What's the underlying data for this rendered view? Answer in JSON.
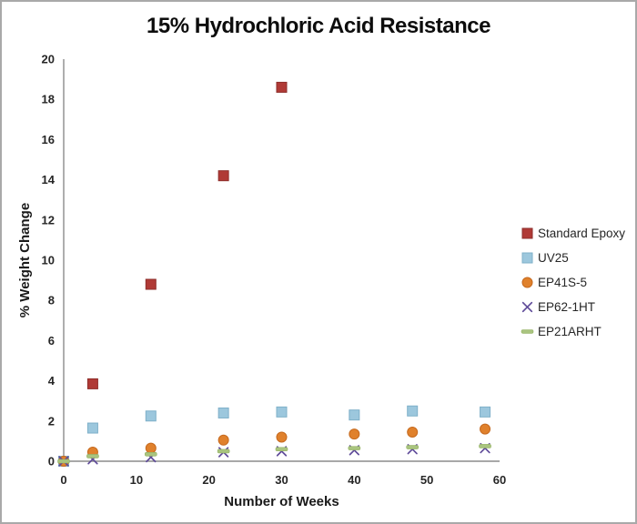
{
  "frame": {
    "background": "#ffffff",
    "border_color": "#a9a9a9"
  },
  "chart_data": {
    "type": "scatter",
    "title": "15% Hydrochloric Acid Resistance",
    "xlabel": "Number of Weeks",
    "ylabel": "% Weight Change",
    "xlim": [
      0,
      60
    ],
    "ylim": [
      0,
      20
    ],
    "x_ticks": [
      0,
      10,
      20,
      30,
      40,
      50,
      60
    ],
    "y_ticks": [
      0,
      2,
      4,
      6,
      8,
      10,
      12,
      14,
      16,
      18,
      20
    ],
    "grid": false,
    "legend_position": "right-middle",
    "axis_color": "#8c8c8c",
    "tick_label_color": "#262626",
    "series": [
      {
        "name": "Standard Epoxy",
        "marker": "square",
        "color": "#b03a36",
        "edge": "#8e2f2c",
        "points": [
          [
            0,
            0
          ],
          [
            4,
            3.85
          ],
          [
            12,
            8.8
          ],
          [
            22,
            14.2
          ],
          [
            30,
            18.6
          ]
        ]
      },
      {
        "name": "UV25",
        "marker": "square",
        "color": "#9cc7dd",
        "edge": "#7fb0c9",
        "points": [
          [
            0,
            0
          ],
          [
            4,
            1.65
          ],
          [
            12,
            2.25
          ],
          [
            22,
            2.4
          ],
          [
            30,
            2.45
          ],
          [
            40,
            2.3
          ],
          [
            48,
            2.5
          ],
          [
            58,
            2.45
          ]
        ]
      },
      {
        "name": "EP41S-5",
        "marker": "circle",
        "color": "#e0812c",
        "edge": "#c66a1f",
        "points": [
          [
            0,
            0
          ],
          [
            4,
            0.45
          ],
          [
            12,
            0.65
          ],
          [
            22,
            1.05
          ],
          [
            30,
            1.2
          ],
          [
            40,
            1.35
          ],
          [
            48,
            1.45
          ],
          [
            58,
            1.6
          ]
        ]
      },
      {
        "name": "EP62-1HT",
        "marker": "x",
        "color": "#5f4b99",
        "edge": "#5f4b99",
        "points": [
          [
            0,
            0
          ],
          [
            4,
            0.1
          ],
          [
            12,
            0.2
          ],
          [
            22,
            0.45
          ],
          [
            30,
            0.5
          ],
          [
            40,
            0.55
          ],
          [
            48,
            0.6
          ],
          [
            58,
            0.65
          ]
        ]
      },
      {
        "name": "EP21ARHT",
        "marker": "dash",
        "color": "#a9c47f",
        "edge": "#93b161",
        "points": [
          [
            0,
            0
          ],
          [
            4,
            0.25
          ],
          [
            12,
            0.35
          ],
          [
            22,
            0.5
          ],
          [
            30,
            0.6
          ],
          [
            40,
            0.65
          ],
          [
            48,
            0.7
          ],
          [
            58,
            0.75
          ]
        ]
      }
    ]
  }
}
